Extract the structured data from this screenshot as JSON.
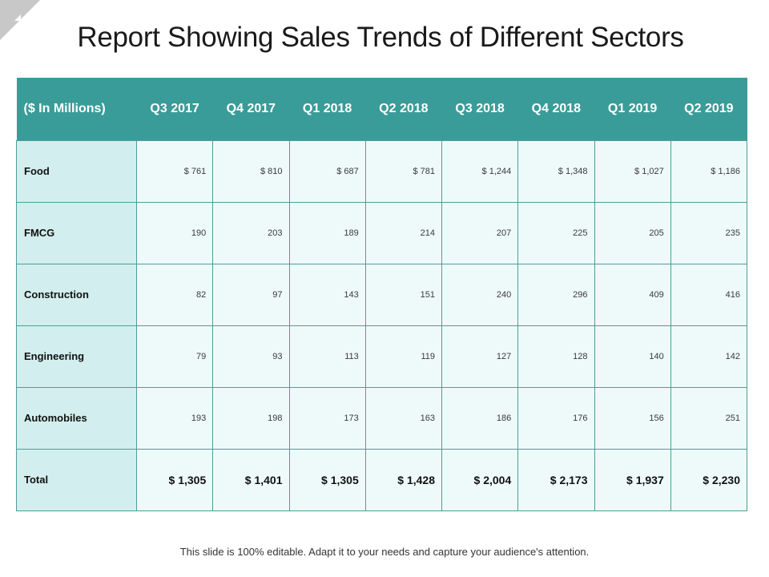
{
  "title": "Report Showing Sales Trends of Different Sectors",
  "colors": {
    "header_bg": "#3a9c98",
    "row_label_bg": "#d2eeee",
    "cell_bg": "#eefaf9",
    "border": "#4c9e9a",
    "corner_mark": "#c8c8c8"
  },
  "table": {
    "corner_header": "($ In Millions)",
    "columns": [
      "Q3 2017",
      "Q4 2017",
      "Q1 2018",
      "Q2 2018",
      "Q3 2018",
      "Q4 2018",
      "Q1 2019",
      "Q2 2019"
    ],
    "rows": [
      {
        "label": "Food",
        "values": [
          "$ 761",
          "$ 810",
          "$ 687",
          "$ 781",
          "$ 1,244",
          "$ 1,348",
          "$ 1,027",
          "$ 1,186"
        ]
      },
      {
        "label": "FMCG",
        "values": [
          "190",
          "203",
          "189",
          "214",
          "207",
          "225",
          "205",
          "235"
        ]
      },
      {
        "label": "Construction",
        "values": [
          "82",
          "97",
          "143",
          "151",
          "240",
          "296",
          "409",
          "416"
        ]
      },
      {
        "label": "Engineering",
        "values": [
          "79",
          "93",
          "113",
          "119",
          "127",
          "128",
          "140",
          "142"
        ]
      },
      {
        "label": "Automobiles",
        "values": [
          "193",
          "198",
          "173",
          "163",
          "186",
          "176",
          "156",
          "251"
        ]
      }
    ],
    "total": {
      "label": "Total",
      "values": [
        "$ 1,305",
        "$ 1,401",
        "$ 1,305",
        "$ 1,428",
        "$ 2,004",
        "$ 2,173",
        "$ 1,937",
        "$ 2,230"
      ]
    }
  },
  "footer": "This slide is 100% editable. Adapt it to your needs and capture your audience's attention."
}
